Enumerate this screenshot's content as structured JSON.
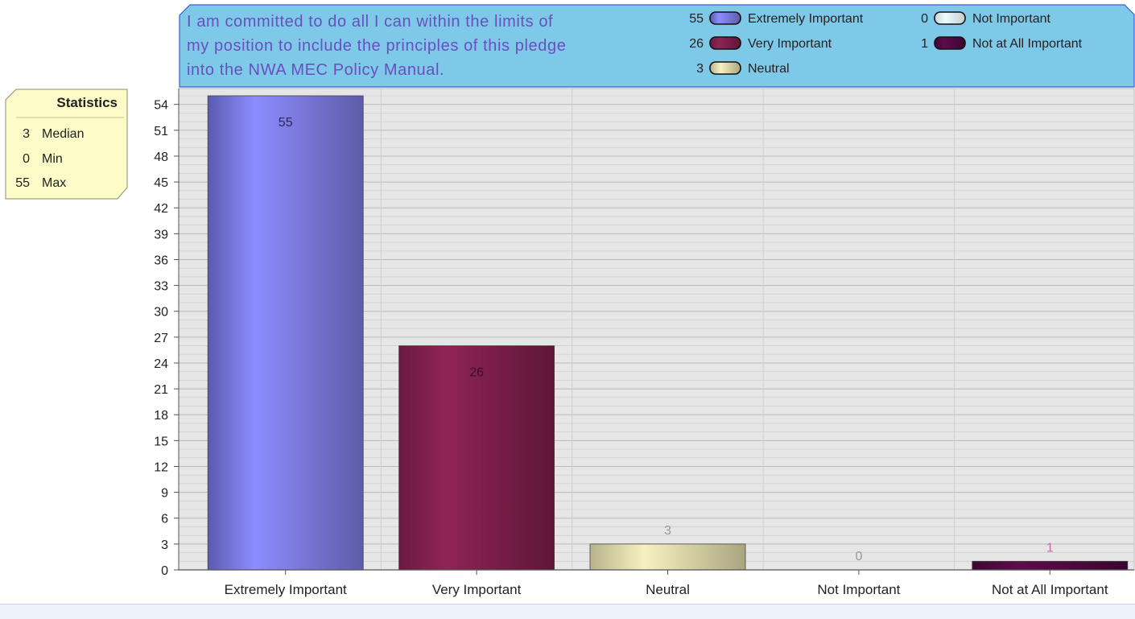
{
  "question": {
    "lines": [
      "I am committed to do all I can within the limits of",
      "my position to include the principles of this pledge",
      "into the NWA MEC Policy Manual."
    ]
  },
  "statistics": {
    "title": "Statistics",
    "rows": [
      {
        "value": "3",
        "label": "Median"
      },
      {
        "value": "0",
        "label": "Min"
      },
      {
        "value": "55",
        "label": "Max"
      }
    ]
  },
  "legend": [
    {
      "value": "55",
      "label": "Extremely Important",
      "color": "#8d8cff"
    },
    {
      "value": "26",
      "label": "Very Important",
      "color": "#a12a5a"
    },
    {
      "value": "3",
      "label": "Neutral",
      "color": "#f7f1c1"
    },
    {
      "value": "0",
      "label": "Not Important",
      "color": "#eefcff"
    },
    {
      "value": "1",
      "label": "Not at All Important",
      "color": "#5e0b4d"
    }
  ],
  "chart_data": {
    "type": "bar",
    "categories": [
      "Extremely Important",
      "Very Important",
      "Neutral",
      "Not Important",
      "Not at All Important"
    ],
    "values": [
      55,
      26,
      3,
      0,
      1
    ],
    "data_labels": [
      "55",
      "26",
      "3",
      "0",
      "1"
    ],
    "colors": [
      "#8d8cff",
      "#8f2456",
      "#f7f1c1",
      "#eefcff",
      "#5e0b4d"
    ],
    "label_colors": [
      "#2a2a55",
      "#3a1020",
      "#999999",
      "#999999",
      "#c06aa8"
    ],
    "ylim": [
      0,
      55
    ],
    "yticks": [
      0,
      3,
      6,
      9,
      12,
      15,
      18,
      21,
      24,
      27,
      30,
      33,
      36,
      39,
      42,
      45,
      48,
      51,
      54
    ],
    "grid": true,
    "legend_position": "top-right"
  }
}
